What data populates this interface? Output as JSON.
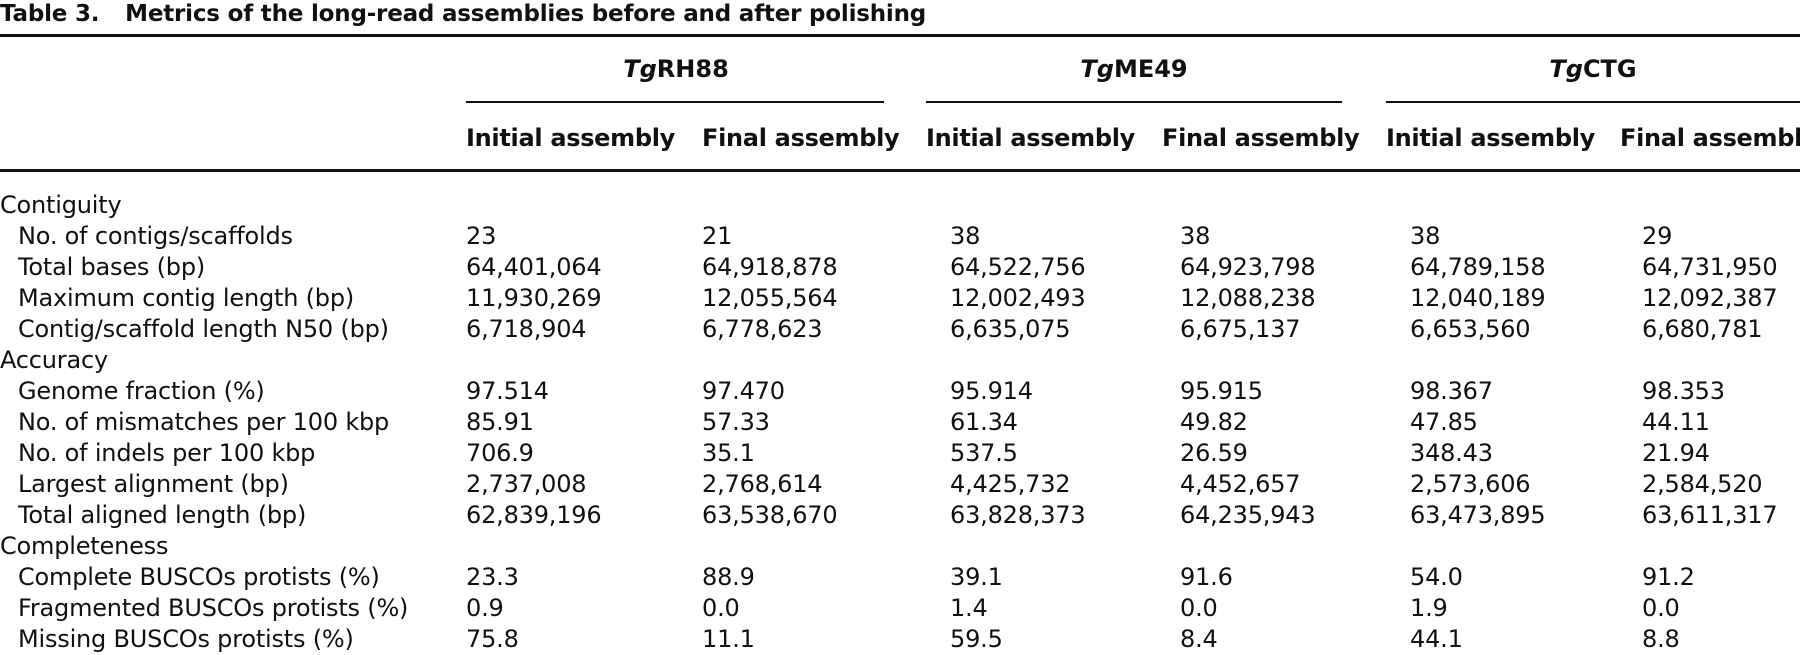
{
  "caption": {
    "label": "Table 3.",
    "title": "Metrics of the long-read assemblies before and after polishing"
  },
  "groups": [
    {
      "prefix": "Tg",
      "name": "RH88"
    },
    {
      "prefix": "Tg",
      "name": "ME49"
    },
    {
      "prefix": "Tg",
      "name": "CTG"
    }
  ],
  "column_headers": [
    "Initial assembly",
    "Final assembly",
    "Initial assembly",
    "Final assembly",
    "Initial assembly",
    "Final assembly"
  ],
  "sections": [
    {
      "name": "Contiguity",
      "rows": [
        {
          "label": "No. of contigs/scaffolds",
          "values": [
            "23",
            "21",
            "38",
            "38",
            "38",
            "29"
          ]
        },
        {
          "label": "Total bases (bp)",
          "values": [
            "64,401,064",
            "64,918,878",
            "64,522,756",
            "64,923,798",
            "64,789,158",
            "64,731,950"
          ]
        },
        {
          "label": "Maximum contig length (bp)",
          "values": [
            "11,930,269",
            "12,055,564",
            "12,002,493",
            "12,088,238",
            "12,040,189",
            "12,092,387"
          ]
        },
        {
          "label": "Contig/scaffold length N50 (bp)",
          "values": [
            "6,718,904",
            "6,778,623",
            "6,635,075",
            "6,675,137",
            "6,653,560",
            "6,680,781"
          ]
        }
      ]
    },
    {
      "name": "Accuracy",
      "rows": [
        {
          "label": "Genome fraction (%)",
          "values": [
            "97.514",
            "97.470",
            "95.914",
            "95.915",
            "98.367",
            "98.353"
          ]
        },
        {
          "label": "No. of mismatches per 100 kbp",
          "values": [
            "85.91",
            "57.33",
            "61.34",
            "49.82",
            "47.85",
            "44.11"
          ]
        },
        {
          "label": "No. of indels per 100 kbp",
          "values": [
            "706.9",
            "35.1",
            "537.5",
            "26.59",
            "348.43",
            "21.94"
          ]
        },
        {
          "label": "Largest alignment (bp)",
          "values": [
            "2,737,008",
            "2,768,614",
            "4,425,732",
            "4,452,657",
            "2,573,606",
            "2,584,520"
          ]
        },
        {
          "label": "Total aligned length (bp)",
          "values": [
            "62,839,196",
            "63,538,670",
            "63,828,373",
            "64,235,943",
            "63,473,895",
            "63,611,317"
          ]
        }
      ]
    },
    {
      "name": "Completeness",
      "rows": [
        {
          "label": "Complete BUSCOs protists (%)",
          "values": [
            "23.3",
            "88.9",
            "39.1",
            "91.6",
            "54.0",
            "91.2"
          ]
        },
        {
          "label": "Fragmented BUSCOs protists (%)",
          "values": [
            "0.9",
            "0.0",
            "1.4",
            "0.0",
            "1.9",
            "0.0"
          ]
        },
        {
          "label": "Missing BUSCOs protists (%)",
          "values": [
            "75.8",
            "11.1",
            "59.5",
            "8.4",
            "44.1",
            "8.8"
          ]
        }
      ]
    }
  ]
}
